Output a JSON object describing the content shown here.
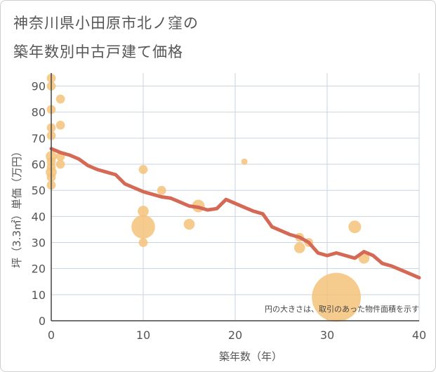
{
  "chart_data": {
    "type": "scatter",
    "title_line1": "神奈川県小田原市北ノ窪の",
    "title_line2": "築年数別中古戸建て価格",
    "xlabel": "築年数（年）",
    "ylabel": "坪（3.3㎡）単価（万円）",
    "xlim": [
      0,
      40
    ],
    "ylim": [
      0,
      95
    ],
    "x_ticks": [
      0,
      10,
      20,
      30,
      40
    ],
    "y_ticks": [
      0,
      10,
      20,
      30,
      40,
      50,
      60,
      70,
      80,
      90
    ],
    "note": "円の大きさは、取引のあった物件面積を示す",
    "colors": {
      "bubble": "#F5C27A",
      "trend": "#D46A55",
      "grid": "#C9D3E0"
    },
    "bubbles": [
      {
        "x": 0,
        "y": 93,
        "size": 2
      },
      {
        "x": 0,
        "y": 90,
        "size": 2
      },
      {
        "x": 0,
        "y": 81,
        "size": 2
      },
      {
        "x": 0,
        "y": 74,
        "size": 2
      },
      {
        "x": 0,
        "y": 71,
        "size": 2
      },
      {
        "x": 0,
        "y": 63,
        "size": 3
      },
      {
        "x": 0,
        "y": 61,
        "size": 2
      },
      {
        "x": 0,
        "y": 59,
        "size": 2
      },
      {
        "x": 0,
        "y": 57,
        "size": 3
      },
      {
        "x": 0,
        "y": 55,
        "size": 2
      },
      {
        "x": 0,
        "y": 52,
        "size": 2
      },
      {
        "x": 1,
        "y": 85,
        "size": 2
      },
      {
        "x": 1,
        "y": 75,
        "size": 2
      },
      {
        "x": 1,
        "y": 63,
        "size": 2
      },
      {
        "x": 1,
        "y": 60,
        "size": 2
      },
      {
        "x": 10,
        "y": 58,
        "size": 2
      },
      {
        "x": 10,
        "y": 42,
        "size": 3
      },
      {
        "x": 10,
        "y": 36,
        "size": 14
      },
      {
        "x": 10,
        "y": 30,
        "size": 2
      },
      {
        "x": 12,
        "y": 50,
        "size": 2
      },
      {
        "x": 15,
        "y": 37,
        "size": 3
      },
      {
        "x": 16,
        "y": 44,
        "size": 4
      },
      {
        "x": 21,
        "y": 61,
        "size": 1
      },
      {
        "x": 27,
        "y": 32,
        "size": 2
      },
      {
        "x": 27,
        "y": 28,
        "size": 3
      },
      {
        "x": 28,
        "y": 30,
        "size": 2
      },
      {
        "x": 31,
        "y": 9,
        "size": 60
      },
      {
        "x": 33,
        "y": 36,
        "size": 4
      },
      {
        "x": 34,
        "y": 24,
        "size": 3
      }
    ],
    "trend": {
      "x": [
        0,
        1,
        2,
        3,
        4,
        5,
        6,
        7,
        8,
        9,
        10,
        11,
        12,
        13,
        14,
        15,
        16,
        17,
        18,
        19,
        20,
        21,
        22,
        23,
        24,
        25,
        26,
        27,
        28,
        29,
        30,
        31,
        32,
        33,
        34,
        35,
        36,
        37,
        38,
        39,
        40
      ],
      "y": [
        66,
        64.5,
        63.5,
        62,
        59.5,
        58,
        57,
        56,
        52.5,
        51,
        49.5,
        48.5,
        47.5,
        47,
        45.5,
        44,
        43.5,
        42.5,
        43,
        46.5,
        45,
        43.5,
        42,
        41,
        36,
        34.5,
        33,
        32,
        30,
        26,
        25,
        26,
        25,
        24,
        26.5,
        25,
        22,
        21,
        19.5,
        18,
        16.5
      ]
    }
  }
}
